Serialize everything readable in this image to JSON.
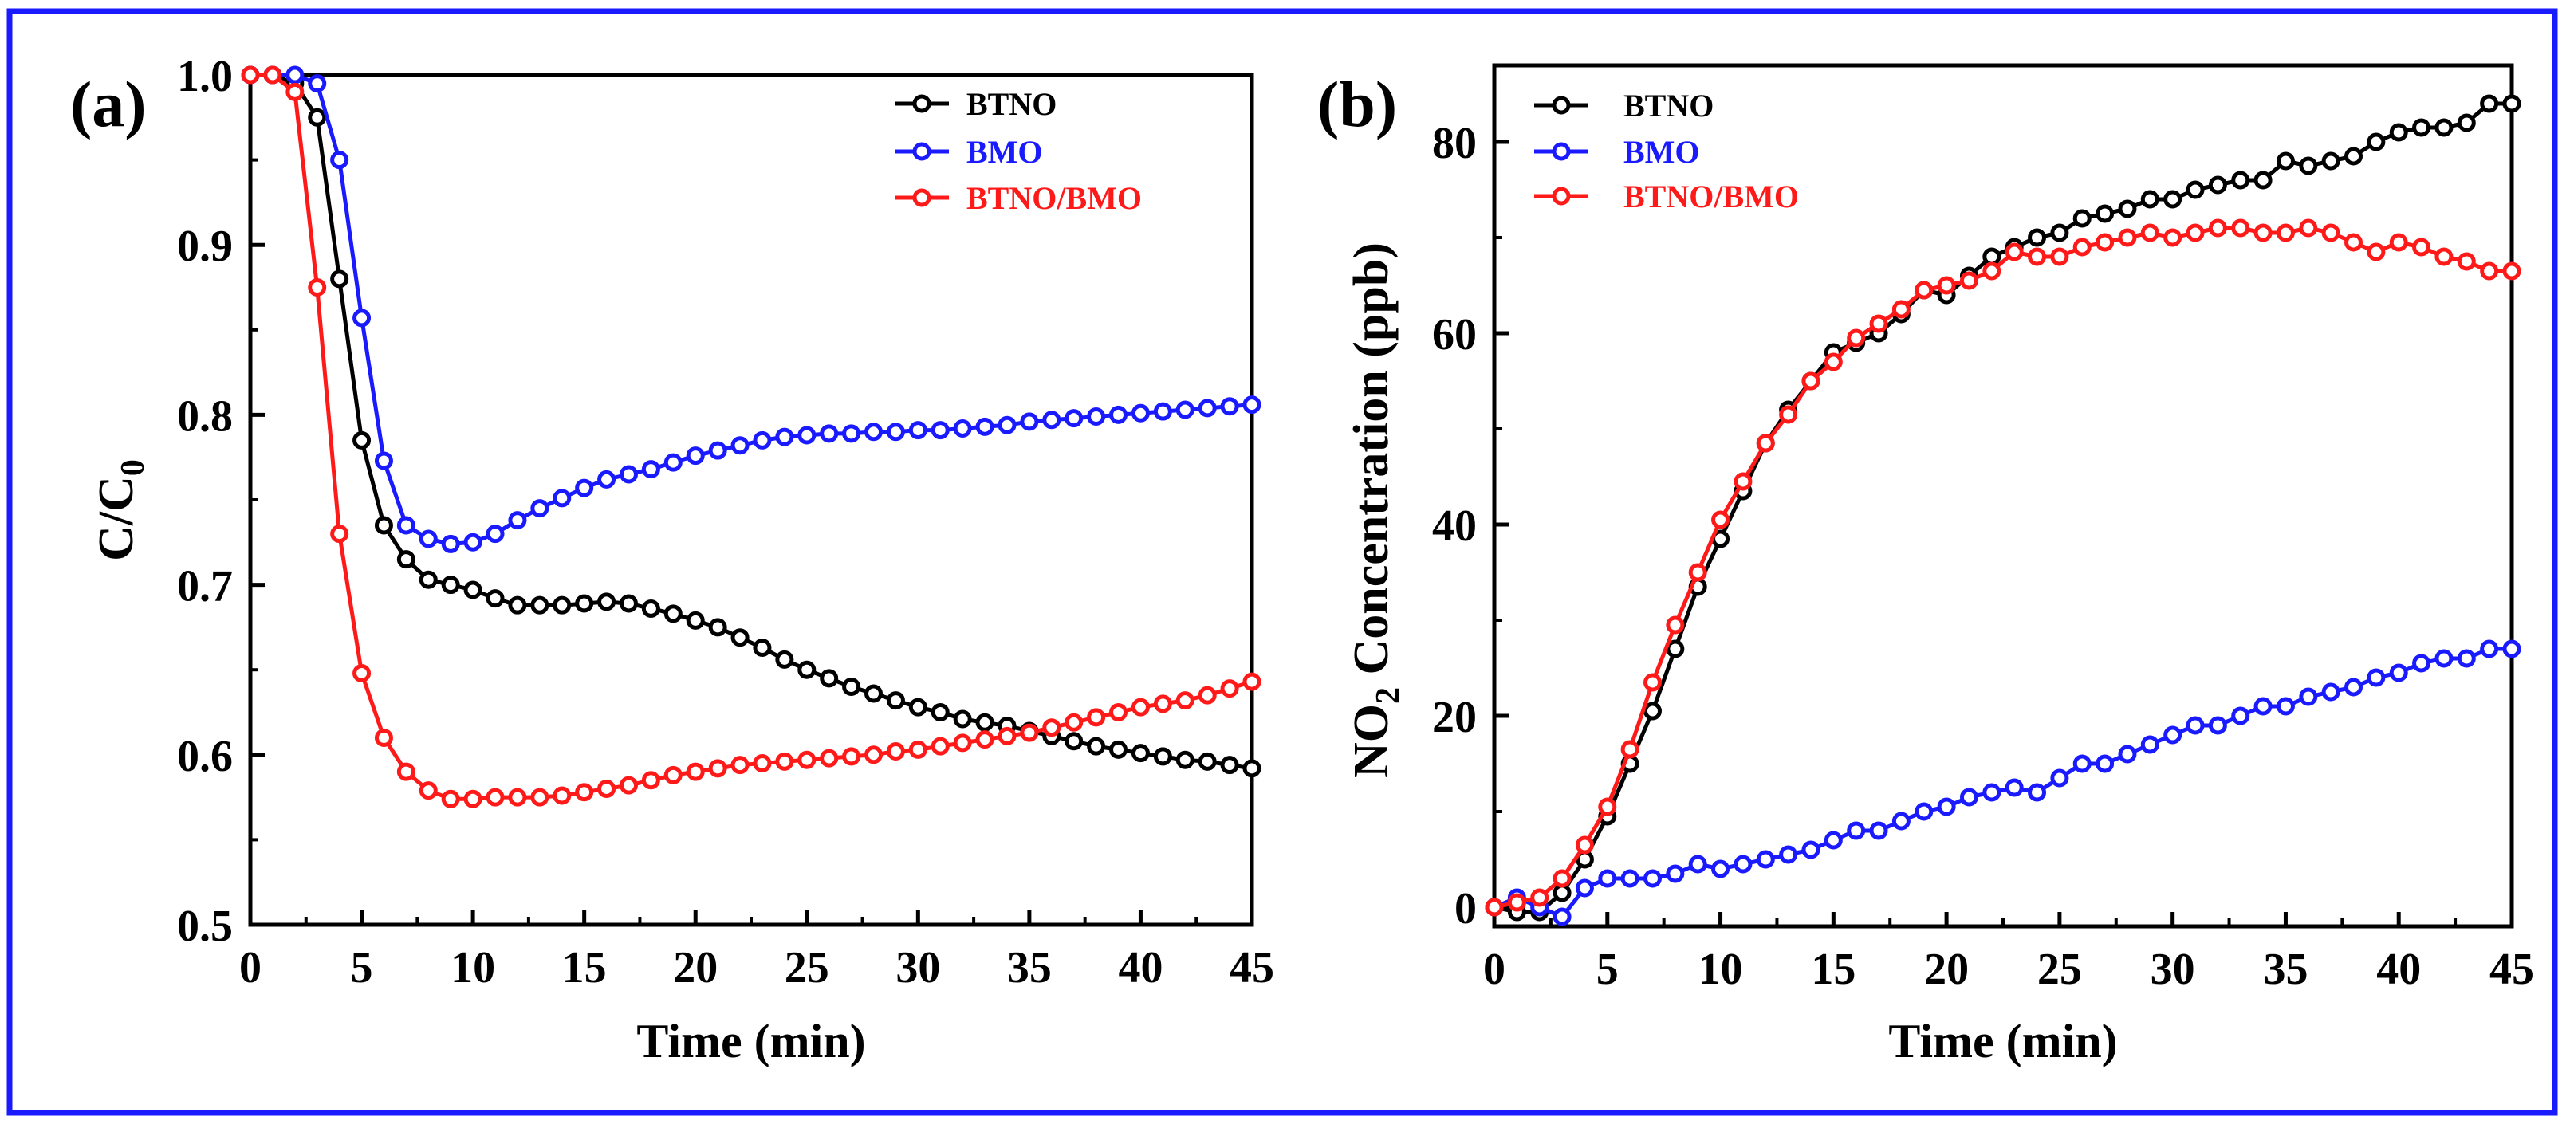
{
  "colors": {
    "frame": "#1a1aff",
    "btno": "#000000",
    "bmo": "#1a1aff",
    "btno_bmo": "#ff1a1a"
  },
  "chart_data": [
    {
      "type": "line",
      "panel_label": "(a)",
      "xlabel": "Time (min)",
      "ylabel_main": "C/C",
      "ylabel_sub": "0",
      "xlim": [
        0,
        45
      ],
      "ylim": [
        0.5,
        1.0
      ],
      "xticks": [
        "0",
        "5",
        "10",
        "15",
        "20",
        "25",
        "30",
        "35",
        "40",
        "45"
      ],
      "xtick_values": [
        0,
        5,
        10,
        15,
        20,
        25,
        30,
        35,
        40,
        45
      ],
      "yticks": [
        "0.5",
        "0.6",
        "0.7",
        "0.8",
        "0.9",
        "1.0"
      ],
      "ytick_values": [
        0.5,
        0.6,
        0.7,
        0.8,
        0.9,
        1.0
      ],
      "legend": "top-right",
      "series": [
        {
          "name": "BTNO",
          "color": "#000000",
          "x": [
            0,
            1,
            2,
            3,
            4,
            5,
            6,
            7,
            8,
            9,
            10,
            11,
            12,
            13,
            14,
            15,
            16,
            17,
            18,
            19,
            20,
            21,
            22,
            23,
            24,
            25,
            26,
            27,
            28,
            29,
            30,
            31,
            32,
            33,
            34,
            35,
            36,
            37,
            38,
            39,
            40,
            41,
            42,
            43,
            44,
            45
          ],
          "values": [
            1.0,
            1.0,
            0.995,
            0.975,
            0.88,
            0.785,
            0.735,
            0.715,
            0.703,
            0.7,
            0.697,
            0.692,
            0.688,
            0.688,
            0.688,
            0.689,
            0.69,
            0.689,
            0.686,
            0.683,
            0.679,
            0.675,
            0.669,
            0.663,
            0.656,
            0.65,
            0.645,
            0.64,
            0.636,
            0.632,
            0.628,
            0.625,
            0.621,
            0.619,
            0.617,
            0.614,
            0.611,
            0.608,
            0.605,
            0.603,
            0.601,
            0.599,
            0.597,
            0.596,
            0.594,
            0.592
          ]
        },
        {
          "name": "BMO",
          "color": "#1a1aff",
          "x": [
            0,
            1,
            2,
            3,
            4,
            5,
            6,
            7,
            8,
            9,
            10,
            11,
            12,
            13,
            14,
            15,
            16,
            17,
            18,
            19,
            20,
            21,
            22,
            23,
            24,
            25,
            26,
            27,
            28,
            29,
            30,
            31,
            32,
            33,
            34,
            35,
            36,
            37,
            38,
            39,
            40,
            41,
            42,
            43,
            44,
            45
          ],
          "values": [
            1.0,
            1.0,
            1.0,
            0.995,
            0.95,
            0.857,
            0.773,
            0.735,
            0.727,
            0.724,
            0.725,
            0.73,
            0.738,
            0.745,
            0.751,
            0.757,
            0.762,
            0.765,
            0.768,
            0.772,
            0.776,
            0.779,
            0.782,
            0.785,
            0.787,
            0.788,
            0.789,
            0.789,
            0.79,
            0.79,
            0.791,
            0.791,
            0.792,
            0.793,
            0.794,
            0.796,
            0.797,
            0.798,
            0.799,
            0.8,
            0.801,
            0.802,
            0.803,
            0.804,
            0.805,
            0.806
          ]
        },
        {
          "name": "BTNO/BMO",
          "color": "#ff1a1a",
          "x": [
            0,
            1,
            2,
            3,
            4,
            5,
            6,
            7,
            8,
            9,
            10,
            11,
            12,
            13,
            14,
            15,
            16,
            17,
            18,
            19,
            20,
            21,
            22,
            23,
            24,
            25,
            26,
            27,
            28,
            29,
            30,
            31,
            32,
            33,
            34,
            35,
            36,
            37,
            38,
            39,
            40,
            41,
            42,
            43,
            44,
            45
          ],
          "values": [
            1.0,
            1.0,
            0.99,
            0.875,
            0.73,
            0.648,
            0.61,
            0.59,
            0.579,
            0.574,
            0.574,
            0.575,
            0.575,
            0.575,
            0.576,
            0.578,
            0.58,
            0.582,
            0.585,
            0.588,
            0.59,
            0.592,
            0.594,
            0.595,
            0.596,
            0.597,
            0.598,
            0.599,
            0.6,
            0.602,
            0.603,
            0.605,
            0.607,
            0.609,
            0.611,
            0.613,
            0.616,
            0.619,
            0.622,
            0.625,
            0.628,
            0.63,
            0.632,
            0.635,
            0.639,
            0.643
          ]
        }
      ]
    },
    {
      "type": "line",
      "panel_label": "(b)",
      "xlabel": "Time (min)",
      "ylabel_main": "NO",
      "ylabel_sub": "2",
      "ylabel_rest": " Concentration (ppb)",
      "xlim": [
        0,
        45
      ],
      "ylim": [
        -2,
        88
      ],
      "xticks": [
        "0",
        "5",
        "10",
        "15",
        "20",
        "25",
        "30",
        "35",
        "40",
        "45"
      ],
      "xtick_values": [
        0,
        5,
        10,
        15,
        20,
        25,
        30,
        35,
        40,
        45
      ],
      "yticks": [
        "0",
        "20",
        "40",
        "60",
        "80"
      ],
      "ytick_values": [
        0,
        20,
        40,
        60,
        80
      ],
      "legend": "top-left",
      "series": [
        {
          "name": "BTNO",
          "color": "#000000",
          "x": [
            0,
            1,
            2,
            3,
            4,
            5,
            6,
            7,
            8,
            9,
            10,
            11,
            12,
            13,
            14,
            15,
            16,
            17,
            18,
            19,
            20,
            21,
            22,
            23,
            24,
            25,
            26,
            27,
            28,
            29,
            30,
            31,
            32,
            33,
            34,
            35,
            36,
            37,
            38,
            39,
            40,
            41,
            42,
            43,
            44,
            45
          ],
          "values": [
            0,
            -0.5,
            -0.5,
            1.5,
            5,
            9.5,
            15,
            20.5,
            27,
            33.5,
            38.5,
            43.5,
            48.5,
            52,
            55,
            58,
            59,
            60,
            62,
            64.5,
            64,
            66,
            68,
            69,
            70,
            70.5,
            72,
            72.5,
            73,
            74,
            74,
            75,
            75.5,
            76,
            76,
            78,
            77.5,
            78,
            78.5,
            80,
            81,
            81.5,
            81.5,
            82,
            84,
            84
          ]
        },
        {
          "name": "BMO",
          "color": "#1a1aff",
          "x": [
            0,
            1,
            2,
            3,
            4,
            5,
            6,
            7,
            8,
            9,
            10,
            11,
            12,
            13,
            14,
            15,
            16,
            17,
            18,
            19,
            20,
            21,
            22,
            23,
            24,
            25,
            26,
            27,
            28,
            29,
            30,
            31,
            32,
            33,
            34,
            35,
            36,
            37,
            38,
            39,
            40,
            41,
            42,
            43,
            44,
            45
          ],
          "values": [
            0,
            1,
            0,
            -1,
            2,
            3,
            3,
            3,
            3.5,
            4.5,
            4,
            4.5,
            5,
            5.5,
            6,
            7,
            8,
            8,
            9,
            10,
            10.5,
            11.5,
            12,
            12.5,
            12,
            13.5,
            15,
            15,
            16,
            17,
            18,
            19,
            19,
            20,
            21,
            21,
            22,
            22.5,
            23,
            24,
            24.5,
            25.5,
            26,
            26,
            27,
            27
          ]
        },
        {
          "name": "BTNO/BMO",
          "color": "#ff1a1a",
          "x": [
            0,
            1,
            2,
            3,
            4,
            5,
            6,
            7,
            8,
            9,
            10,
            11,
            12,
            13,
            14,
            15,
            16,
            17,
            18,
            19,
            20,
            21,
            22,
            23,
            24,
            25,
            26,
            27,
            28,
            29,
            30,
            31,
            32,
            33,
            34,
            35,
            36,
            37,
            38,
            39,
            40,
            41,
            42,
            43,
            44,
            45
          ],
          "values": [
            0,
            0.5,
            1,
            3,
            6.5,
            10.5,
            16.5,
            23.5,
            29.5,
            35,
            40.5,
            44.5,
            48.5,
            51.5,
            55,
            57,
            59.5,
            61,
            62.5,
            64.5,
            65,
            65.5,
            66.5,
            68.5,
            68,
            68,
            69,
            69.5,
            70,
            70.5,
            70,
            70.5,
            71,
            71,
            70.5,
            70.5,
            71,
            70.5,
            69.5,
            68.5,
            69.5,
            69,
            68,
            67.5,
            66.5,
            66.5
          ]
        }
      ]
    }
  ]
}
